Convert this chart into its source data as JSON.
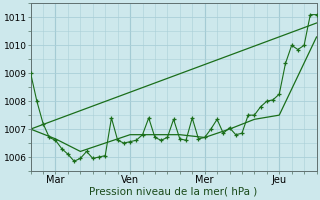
{
  "background_color": "#cde8ec",
  "grid_color": "#aacfd8",
  "line_color": "#1a6e1a",
  "marker_color": "#1a6e1a",
  "xlabel": "Pression niveau de la mer( hPa )",
  "ylim": [
    1005.5,
    1011.5
  ],
  "yticks": [
    1006,
    1007,
    1008,
    1009,
    1010,
    1011
  ],
  "xtick_labels": [
    "Mar",
    "Ven",
    "Mer",
    "Jeu"
  ],
  "xtick_positions": [
    24,
    96,
    168,
    240
  ],
  "xlim": [
    0,
    276
  ],
  "vlines": [
    24,
    96,
    168,
    240
  ],
  "series_main": {
    "x": [
      0,
      6,
      12,
      18,
      24,
      30,
      36,
      42,
      48,
      54,
      60,
      66,
      72,
      78,
      84,
      90,
      96,
      102,
      108,
      114,
      120,
      126,
      132,
      138,
      144,
      150,
      156,
      162,
      168,
      174,
      180,
      186,
      192,
      198,
      204,
      210,
      216,
      222,
      228,
      234,
      240,
      246,
      252,
      258,
      264,
      270,
      276
    ],
    "y": [
      1009.0,
      1008.0,
      1007.2,
      1006.7,
      1006.6,
      1006.3,
      1006.1,
      1005.85,
      1005.95,
      1006.2,
      1005.95,
      1006.0,
      1006.05,
      1007.4,
      1006.6,
      1006.5,
      1006.55,
      1006.6,
      1006.8,
      1007.4,
      1006.7,
      1006.6,
      1006.7,
      1007.35,
      1006.65,
      1006.6,
      1007.4,
      1006.65,
      1006.7,
      1007.0,
      1007.35,
      1006.85,
      1007.05,
      1006.8,
      1006.85,
      1007.5,
      1007.5,
      1007.8,
      1008.0,
      1008.05,
      1008.25,
      1009.35,
      1010.0,
      1009.85,
      1010.0,
      1011.1,
      1011.1
    ]
  },
  "series_smooth": {
    "x": [
      0,
      24,
      48,
      96,
      144,
      168,
      192,
      216,
      240,
      276
    ],
    "y": [
      1007.0,
      1006.65,
      1006.2,
      1006.8,
      1006.8,
      1006.7,
      1007.0,
      1007.35,
      1007.5,
      1010.3
    ]
  },
  "series_trend": {
    "x": [
      0,
      276
    ],
    "y": [
      1007.0,
      1010.8
    ]
  }
}
